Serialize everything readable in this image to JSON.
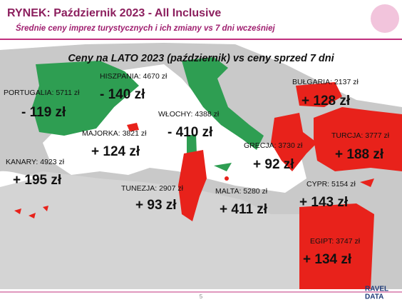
{
  "header": {
    "title": "RYNEK: Październik 2023 - All Inclusive",
    "subtitle": "Średnie ceny imprez turystycznych i ich zmiany vs 7 dni wcześniej"
  },
  "map": {
    "title": "Ceny na LATO 2023 (październik) vs ceny sprzed 7 dni",
    "destinations": [
      {
        "label": "PORTUGALIA: 5711 zł",
        "change": "- 119 zł"
      },
      {
        "label": "HISZPANIA: 4670 zł",
        "change": "- 140 zł"
      },
      {
        "label": "MAJORKA: 3821 zł",
        "change": "+ 124 zł"
      },
      {
        "label": "KANARY: 4923 zł",
        "change": "+ 195 zł"
      },
      {
        "label": "WŁOCHY: 4388 zł",
        "change": "- 410 zł"
      },
      {
        "label": "GRECJA: 3730 zł",
        "change": "+ 92 zł"
      },
      {
        "label": "BUŁGARIA: 2137 zł",
        "change": "+ 128 zł"
      },
      {
        "label": "TURCJA: 3777 zł",
        "change": "+ 188 zł"
      },
      {
        "label": "TUNEZJA: 2907 zł",
        "change": "+ 93 zł"
      },
      {
        "label": "MALTA: 5280 zł",
        "change": "+ 411 zł"
      },
      {
        "label": "CYPR: 5154 zł",
        "change": "+ 143 zł"
      },
      {
        "label": "EGIPT: 3747 zł",
        "change": "+ 134 zł"
      }
    ]
  },
  "footer": {
    "page": "5",
    "logo_top": "RAVEL",
    "logo_bottom": "DATA"
  }
}
